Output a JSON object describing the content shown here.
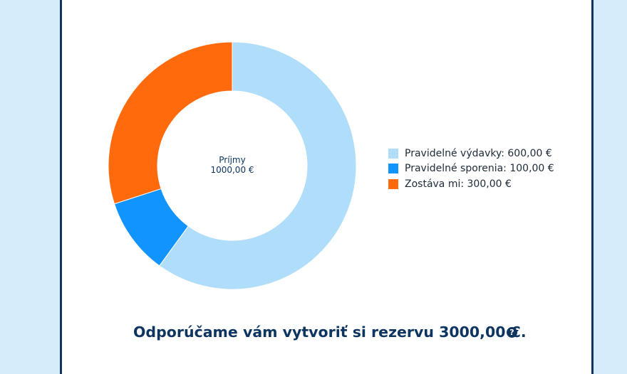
{
  "chart_data": {
    "type": "pie",
    "variant": "donut",
    "center_label": {
      "title": "Príjmy",
      "value": "1000,00 €"
    },
    "slices": [
      {
        "label": "Pravidelné výdavky",
        "value": 600,
        "display": "600,00 €",
        "color": "#b0ddf9"
      },
      {
        "label": "Pravidelné sporenia",
        "value": 100,
        "display": "100,00 €",
        "color": "#1294ff"
      },
      {
        "label": "Zostáva mi",
        "value": 300,
        "display": "300,00 €",
        "color": "#ff6a0d"
      }
    ],
    "legend_position": "right"
  },
  "legend": [
    {
      "text": "Pravidelné výdavky: 600,00 €",
      "color": "#b0ddf9"
    },
    {
      "text": "Pravidelné sporenia: 100,00 €",
      "color": "#1294ff"
    },
    {
      "text": "Zostáva mi: 300,00 €",
      "color": "#ff6a0d"
    }
  ],
  "recommendation": {
    "text": "Odporúčame vám vytvoriť si rezervu 3000,00 €."
  },
  "help": {
    "icon": "question-circle-icon",
    "glyph": "?"
  },
  "colors": {
    "frame": "#0d3560",
    "page_background": "#d7ecfa",
    "accent": "#ff6a0d"
  }
}
